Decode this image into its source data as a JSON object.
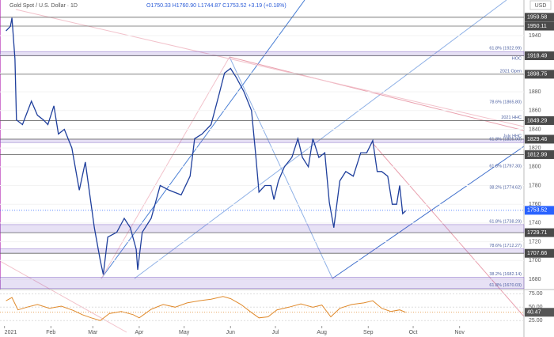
{
  "header": {
    "symbol": "Gold Spot / U.S. Dollar · 1D",
    "ohlc": "O1750.33 H1760.90 L1744.87 C1753.52 +3.19 (+0.18%)",
    "currency": "USD"
  },
  "chart_data": [
    {
      "type": "line",
      "name": "price",
      "x": [
        1,
        4,
        5,
        7,
        8,
        12,
        18,
        22,
        26,
        29,
        33,
        36,
        40,
        45,
        50,
        54,
        57,
        60,
        64,
        66,
        69,
        75,
        80,
        84,
        88,
        89,
        92,
        98,
        104,
        110,
        118,
        124,
        127,
        132,
        138,
        143,
        147,
        151,
        155,
        160,
        165,
        168,
        170,
        174,
        178,
        180,
        183,
        187,
        192,
        196,
        199,
        203,
        206,
        210,
        214,
        217,
        220,
        224,
        228,
        233,
        238,
        242,
        246,
        249,
        252,
        256,
        259,
        262,
        264,
        266,
        268
      ],
      "series": [
        {
          "name": "Gold Spot / U.S. Dollar",
          "color": "#1f3f9c",
          "values": [
            1945,
            1950,
            1959,
            1915,
            1850,
            1845,
            1870,
            1855,
            1850,
            1845,
            1865,
            1835,
            1840,
            1820,
            1775,
            1805,
            1770,
            1735,
            1700,
            1685,
            1725,
            1730,
            1745,
            1735,
            1712,
            1690,
            1730,
            1745,
            1780,
            1775,
            1770,
            1790,
            1830,
            1835,
            1845,
            1875,
            1900,
            1905,
            1895,
            1880,
            1860,
            1810,
            1773,
            1780,
            1780,
            1765,
            1785,
            1800,
            1810,
            1830,
            1810,
            1800,
            1830,
            1810,
            1815,
            1762,
            1735,
            1785,
            1795,
            1790,
            1815,
            1815,
            1828,
            1795,
            1795,
            1790,
            1760,
            1760,
            1780,
            1750,
            1753
          ]
        }
      ],
      "last": 1753.52,
      "xlim": [
        -3,
        347
      ],
      "xticks": [
        {
          "value": 0,
          "label": "2021"
        },
        {
          "value": 31,
          "label": "Feb"
        },
        {
          "value": 59,
          "label": "Mar"
        },
        {
          "value": 90,
          "label": "Apr"
        },
        {
          "value": 120,
          "label": "May"
        },
        {
          "value": 151,
          "label": "Jun"
        },
        {
          "value": 181,
          "label": "Jul"
        },
        {
          "value": 212,
          "label": "Aug"
        },
        {
          "value": 243,
          "label": "Sep"
        },
        {
          "value": 273,
          "label": "Oct"
        },
        {
          "value": 304,
          "label": "Nov"
        }
      ],
      "ylim": [
        1669,
        1978
      ],
      "yticks": [
        1680,
        1700,
        1720,
        1740,
        1760,
        1780,
        1800,
        1820,
        1840,
        1860,
        1880,
        1900,
        1920,
        1940
      ],
      "levels": [
        1959.58,
        1950.11,
        1918.49,
        1898.75,
        1849.29,
        1829.46,
        1812.99,
        1729.71,
        1707.66
      ],
      "annotations": [
        {
          "value": 1922.99,
          "text": "61.8% (1922.99)"
        },
        {
          "value": 1912,
          "text": "HOC"
        },
        {
          "value": 1898.75,
          "text": "2021 Open"
        },
        {
          "value": 1865.8,
          "text": "78.6% (1865.80)"
        },
        {
          "value": 1849.29,
          "text": "2021 HHC"
        },
        {
          "value": 1829.46,
          "text": "July HHC"
        },
        {
          "value": 1825.9,
          "text": "61.8% (1825.90)"
        },
        {
          "value": 1797.3,
          "text": "61.8% (1797.30)"
        },
        {
          "value": 1774.62,
          "text": "38.2% (1774.62)"
        },
        {
          "value": 1738.29,
          "text": "61.8% (1738.29)"
        },
        {
          "value": 1712.27,
          "text": "78.6% (1712.27)"
        },
        {
          "value": 1682.14,
          "text": "38.2% (1682.14)"
        },
        {
          "value": 1670.03,
          "text": "61.8% (1670.03)"
        }
      ],
      "zones": [
        [
          1918.49,
          1922.99
        ],
        [
          1825.9,
          1829.46
        ],
        [
          1729.71,
          1738.29
        ],
        [
          1707.66,
          1712.27
        ],
        [
          1670.03,
          1682.14
        ]
      ]
    },
    {
      "type": "line",
      "name": "rsi",
      "x": [
        1,
        5,
        9,
        15,
        22,
        30,
        38,
        46,
        52,
        58,
        64,
        70,
        78,
        86,
        90,
        98,
        106,
        114,
        122,
        130,
        138,
        146,
        151,
        158,
        164,
        170,
        176,
        182,
        190,
        198,
        206,
        212,
        218,
        224,
        232,
        240,
        246,
        252,
        258,
        264,
        268
      ],
      "series": [
        {
          "name": "RSI",
          "color": "#e08a2c",
          "values": [
            62,
            68,
            45,
            50,
            55,
            48,
            52,
            44,
            36,
            30,
            25,
            38,
            42,
            36,
            30,
            46,
            55,
            50,
            58,
            62,
            65,
            70,
            66,
            55,
            42,
            30,
            32,
            45,
            50,
            56,
            50,
            54,
            32,
            48,
            55,
            58,
            62,
            48,
            42,
            45,
            40.47
          ]
        }
      ],
      "last": 40.47,
      "xlim": [
        -3,
        347
      ],
      "ylim": [
        15,
        80
      ],
      "yticks": [
        {
          "value": 25,
          "label": "25.00"
        },
        {
          "value": 50,
          "label": "50.00"
        },
        {
          "value": 75,
          "label": "75.00"
        }
      ]
    }
  ]
}
